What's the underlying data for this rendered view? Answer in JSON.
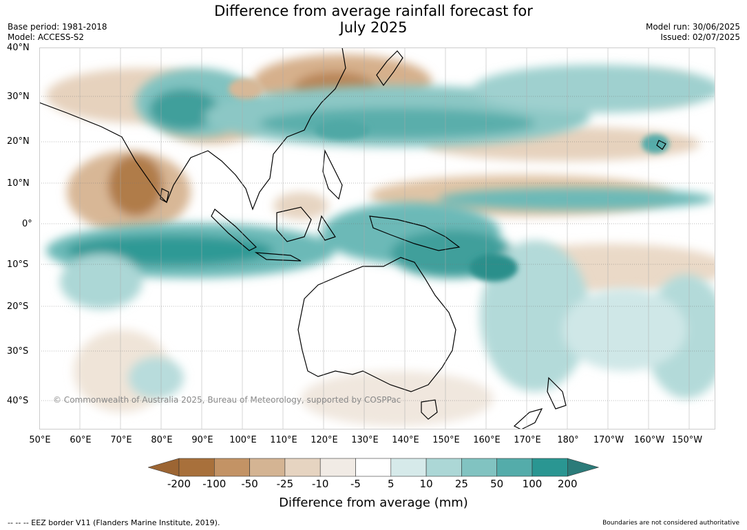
{
  "header": {
    "title_line1": "Difference from average rainfall forecast for",
    "title_line2": "July 2025",
    "base_period": "Base period: 1981-2018",
    "model": "Model: ACCESS-S2",
    "model_run": "Model run: 30/06/2025",
    "issued": "Issued: 02/07/2025"
  },
  "map": {
    "lat_labels": [
      "40°N",
      "30°N",
      "20°N",
      "10°N",
      "0°",
      "10°S",
      "20°S",
      "30°S",
      "40°S"
    ],
    "lon_labels": [
      "50°E",
      "60°E",
      "70°E",
      "80°E",
      "90°E",
      "100°E",
      "110°E",
      "120°E",
      "130°E",
      "140°E",
      "150°E",
      "160°E",
      "170°E",
      "180°",
      "170°W",
      "160°W",
      "150°W"
    ],
    "copyright": "© Commonwealth of Australia 2025, Bureau of Meteorology, supported by COSPPac",
    "colors": {
      "ocean_dry_strong": "#a46b37",
      "dry_mod": "#c8996a",
      "dry_light": "#e0c7ab",
      "neutral": "#ffffff",
      "wet_light": "#b8dcdc",
      "wet_mod": "#6cb9b7",
      "wet_strong": "#2f9995"
    }
  },
  "colorbar": {
    "ticks": [
      "-200",
      "-100",
      "-50",
      "-25",
      "-10",
      "-5",
      "5",
      "10",
      "25",
      "50",
      "100",
      "200"
    ],
    "colors": [
      "#9c6533",
      "#a8703b",
      "#c39365",
      "#d4b493",
      "#e6d4c1",
      "#f1ebe5",
      "#ffffff",
      "#d6eaea",
      "#acd7d6",
      "#81c3c1",
      "#54acaa",
      "#2a9692",
      "#2b7b79"
    ],
    "label": "Difference from average (mm)"
  },
  "footer": {
    "eez_note": "--  --  -- EEZ border V11 (Flanders Marine Institute, 2019).",
    "boundary_note": "Boundaries are not considered authoritative"
  }
}
